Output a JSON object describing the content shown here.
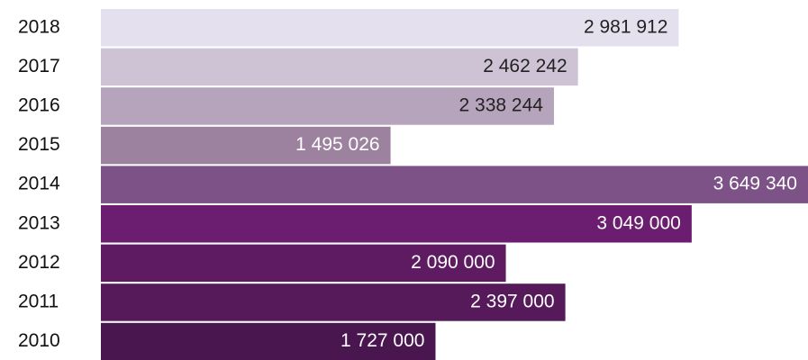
{
  "chart_data": {
    "type": "barh",
    "categories": [
      "2018",
      "2017",
      "2016",
      "2015",
      "2014",
      "2013",
      "2012",
      "2011",
      "2010"
    ],
    "values": [
      2981912,
      2462242,
      2338244,
      1495026,
      3649340,
      3049000,
      2090000,
      2397000,
      1727000
    ],
    "value_labels": [
      "2 981 912",
      "2 462 242",
      "2 338 244",
      "1 495 026",
      "3 649 340",
      "3 049 000",
      "2 090 000",
      "2 397 000",
      "1 727 000"
    ],
    "colors": [
      "#e5e0ed",
      "#cdc3d5",
      "#b5a4bb",
      "#9d82a0",
      "#7c5287",
      "#6b1d6f",
      "#5f1b62",
      "#561a5a",
      "#4a1650"
    ],
    "label_colors": [
      "#222222",
      "#222222",
      "#222222",
      "#ffffff",
      "#ffffff",
      "#ffffff",
      "#ffffff",
      "#ffffff",
      "#ffffff"
    ]
  }
}
